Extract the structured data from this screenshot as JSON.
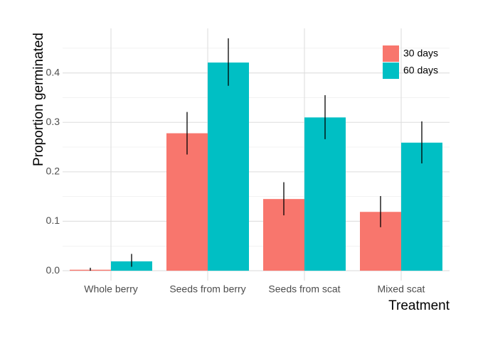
{
  "chart_data": {
    "type": "bar",
    "title": "",
    "xlabel": "Treatment",
    "ylabel": "Proportion germinated",
    "categories": [
      "Whole berry",
      "Seeds from berry",
      "Seeds from scat",
      "Mixed scat"
    ],
    "series": [
      {
        "name": "30 days",
        "color": "#F8766D",
        "values": [
          0.002,
          0.278,
          0.145,
          0.119
        ],
        "error_low": [
          0.0,
          0.235,
          0.112,
          0.088
        ],
        "error_high": [
          0.006,
          0.321,
          0.179,
          0.151
        ]
      },
      {
        "name": "60 days",
        "color": "#00BFC4",
        "values": [
          0.019,
          0.421,
          0.31,
          0.259
        ],
        "error_low": [
          0.008,
          0.374,
          0.266,
          0.217
        ],
        "error_high": [
          0.034,
          0.47,
          0.355,
          0.302
        ]
      }
    ],
    "ylim": [
      -0.02,
      0.49
    ],
    "yticks": [
      0.0,
      0.1,
      0.2,
      0.3,
      0.4
    ],
    "ytick_labels": [
      "0.0",
      "0.1",
      "0.2",
      "0.3",
      "0.4"
    ],
    "grid": true,
    "legend_position": "top-right"
  }
}
